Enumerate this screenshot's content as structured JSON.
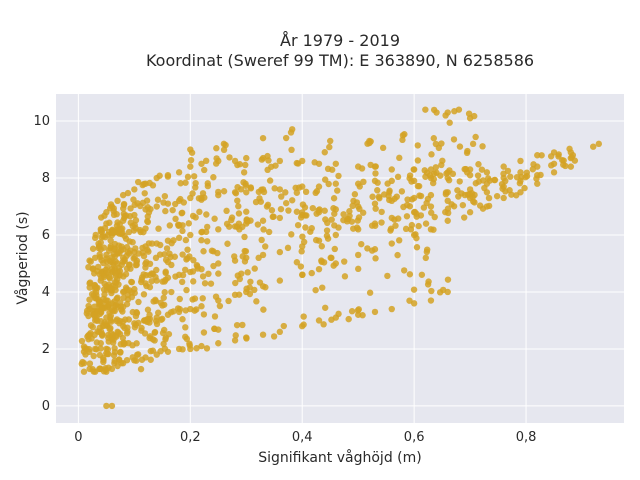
{
  "chart_data": {
    "type": "scatter",
    "title_line1": "År 1979 - 2019",
    "title_line2": "Koordinat (Sweref 99 TM): E 363890, N 6258586",
    "xlabel": "Signifikant våghöjd (m)",
    "ylabel": "Vågperiod (s)",
    "xlim": [
      -0.04,
      0.975
    ],
    "ylim": [
      -0.6,
      10.95
    ],
    "x_ticks": [
      {
        "value": 0,
        "label": "0"
      },
      {
        "value": 0.2,
        "label": "0,2"
      },
      {
        "value": 0.4,
        "label": "0,4"
      },
      {
        "value": 0.6,
        "label": "0,6"
      },
      {
        "value": 0.8,
        "label": "0,8"
      }
    ],
    "y_ticks": [
      {
        "value": 0,
        "label": "0"
      },
      {
        "value": 2,
        "label": "2"
      },
      {
        "value": 4,
        "label": "4"
      },
      {
        "value": 6,
        "label": "6"
      },
      {
        "value": 8,
        "label": "8"
      },
      {
        "value": 10,
        "label": "10"
      }
    ],
    "grid": true,
    "legend": "none",
    "colors": {
      "marker": "#d4a223",
      "plot_background": "#e6e7ef",
      "grid": "#ffffff"
    },
    "series": [
      {
        "points": [
          [
            0.05,
            0.0
          ],
          [
            0.06,
            0.0
          ],
          [
            0.01,
            1.2
          ],
          [
            0.01,
            1.5
          ],
          [
            0.01,
            1.9
          ],
          [
            0.02,
            1.3
          ],
          [
            0.02,
            2.5
          ],
          [
            0.02,
            3.4
          ],
          [
            0.02,
            4.3
          ],
          [
            0.02,
            5.1
          ],
          [
            0.03,
            1.2
          ],
          [
            0.03,
            2.0
          ],
          [
            0.03,
            3.0
          ],
          [
            0.03,
            4.1
          ],
          [
            0.03,
            5.2
          ],
          [
            0.03,
            5.9
          ],
          [
            0.04,
            1.3
          ],
          [
            0.04,
            2.2
          ],
          [
            0.04,
            3.3
          ],
          [
            0.04,
            4.4
          ],
          [
            0.04,
            5.5
          ],
          [
            0.04,
            6.2
          ],
          [
            0.05,
            1.2
          ],
          [
            0.05,
            2.0
          ],
          [
            0.05,
            3.1
          ],
          [
            0.05,
            4.2
          ],
          [
            0.05,
            5.3
          ],
          [
            0.05,
            6.4
          ],
          [
            0.05,
            6.8
          ],
          [
            0.06,
            1.3
          ],
          [
            0.06,
            2.4
          ],
          [
            0.06,
            3.6
          ],
          [
            0.06,
            4.8
          ],
          [
            0.06,
            6.0
          ],
          [
            0.06,
            7.0
          ],
          [
            0.07,
            1.4
          ],
          [
            0.07,
            2.6
          ],
          [
            0.07,
            3.8
          ],
          [
            0.07,
            5.0
          ],
          [
            0.07,
            6.2
          ],
          [
            0.07,
            7.2
          ],
          [
            0.08,
            1.5
          ],
          [
            0.08,
            2.8
          ],
          [
            0.08,
            4.0
          ],
          [
            0.08,
            5.2
          ],
          [
            0.08,
            6.5
          ],
          [
            0.08,
            7.4
          ],
          [
            0.1,
            1.6
          ],
          [
            0.1,
            2.9
          ],
          [
            0.1,
            4.1
          ],
          [
            0.1,
            5.4
          ],
          [
            0.1,
            6.7
          ],
          [
            0.1,
            7.6
          ],
          [
            0.12,
            1.7
          ],
          [
            0.12,
            3.0
          ],
          [
            0.12,
            4.3
          ],
          [
            0.12,
            5.6
          ],
          [
            0.12,
            6.9
          ],
          [
            0.12,
            7.8
          ],
          [
            0.14,
            1.8
          ],
          [
            0.14,
            3.1
          ],
          [
            0.14,
            4.4
          ],
          [
            0.14,
            5.7
          ],
          [
            0.14,
            7.0
          ],
          [
            0.14,
            8.0
          ],
          [
            0.16,
            1.9
          ],
          [
            0.16,
            3.2
          ],
          [
            0.16,
            4.5
          ],
          [
            0.16,
            5.8
          ],
          [
            0.16,
            7.1
          ],
          [
            0.16,
            8.1
          ],
          [
            0.18,
            2.0
          ],
          [
            0.18,
            3.3
          ],
          [
            0.18,
            4.6
          ],
          [
            0.18,
            5.9
          ],
          [
            0.18,
            7.2
          ],
          [
            0.18,
            8.2
          ],
          [
            0.2,
            2.0
          ],
          [
            0.2,
            3.4
          ],
          [
            0.2,
            4.7
          ],
          [
            0.2,
            6.0
          ],
          [
            0.2,
            7.3
          ],
          [
            0.2,
            8.4
          ],
          [
            0.22,
            2.1
          ],
          [
            0.22,
            3.5
          ],
          [
            0.22,
            4.8
          ],
          [
            0.22,
            6.1
          ],
          [
            0.22,
            7.3
          ],
          [
            0.22,
            8.5
          ],
          [
            0.25,
            2.2
          ],
          [
            0.25,
            3.7
          ],
          [
            0.25,
            5.0
          ],
          [
            0.25,
            6.2
          ],
          [
            0.25,
            7.4
          ],
          [
            0.25,
            8.6
          ],
          [
            0.28,
            2.3
          ],
          [
            0.28,
            3.9
          ],
          [
            0.28,
            5.1
          ],
          [
            0.28,
            6.3
          ],
          [
            0.28,
            7.5
          ],
          [
            0.28,
            8.6
          ],
          [
            0.3,
            2.4
          ],
          [
            0.3,
            4.0
          ],
          [
            0.3,
            5.2
          ],
          [
            0.3,
            6.4
          ],
          [
            0.3,
            7.5
          ],
          [
            0.3,
            8.7
          ],
          [
            0.33,
            2.5
          ],
          [
            0.33,
            4.2
          ],
          [
            0.33,
            5.3
          ],
          [
            0.33,
            6.5
          ],
          [
            0.33,
            7.6
          ],
          [
            0.33,
            8.7
          ],
          [
            0.36,
            2.6
          ],
          [
            0.36,
            4.4
          ],
          [
            0.36,
            5.4
          ],
          [
            0.36,
            6.6
          ],
          [
            0.36,
            7.6
          ],
          [
            0.36,
            8.6
          ],
          [
            0.4,
            2.8
          ],
          [
            0.4,
            4.6
          ],
          [
            0.4,
            5.6
          ],
          [
            0.4,
            6.7
          ],
          [
            0.4,
            7.7
          ],
          [
            0.4,
            8.6
          ],
          [
            0.43,
            3.0
          ],
          [
            0.43,
            4.8
          ],
          [
            0.43,
            5.8
          ],
          [
            0.43,
            6.8
          ],
          [
            0.43,
            7.7
          ],
          [
            0.43,
            8.5
          ],
          [
            0.46,
            3.1
          ],
          [
            0.46,
            5.0
          ],
          [
            0.46,
            6.0
          ],
          [
            0.46,
            6.9
          ],
          [
            0.46,
            7.8
          ],
          [
            0.46,
            8.5
          ],
          [
            0.5,
            3.2
          ],
          [
            0.5,
            5.3
          ],
          [
            0.5,
            6.2
          ],
          [
            0.5,
            7.0
          ],
          [
            0.5,
            7.8
          ],
          [
            0.5,
            8.4
          ],
          [
            0.53,
            3.3
          ],
          [
            0.53,
            5.5
          ],
          [
            0.53,
            6.4
          ],
          [
            0.53,
            7.1
          ],
          [
            0.53,
            7.9
          ],
          [
            0.53,
            8.4
          ],
          [
            0.56,
            3.4
          ],
          [
            0.56,
            5.7
          ],
          [
            0.56,
            6.6
          ],
          [
            0.56,
            7.2
          ],
          [
            0.56,
            7.9
          ],
          [
            0.56,
            8.3
          ],
          [
            0.6,
            3.6
          ],
          [
            0.6,
            6.0
          ],
          [
            0.6,
            6.8
          ],
          [
            0.6,
            7.3
          ],
          [
            0.6,
            7.9
          ],
          [
            0.6,
            8.3
          ],
          [
            0.63,
            3.7
          ],
          [
            0.63,
            6.2
          ],
          [
            0.63,
            7.0
          ],
          [
            0.63,
            7.4
          ],
          [
            0.63,
            8.0
          ],
          [
            0.63,
            8.3
          ],
          [
            0.66,
            4.0
          ],
          [
            0.66,
            6.5
          ],
          [
            0.66,
            7.2
          ],
          [
            0.66,
            7.5
          ],
          [
            0.66,
            8.0
          ],
          [
            0.66,
            8.2
          ],
          [
            0.7,
            6.8
          ],
          [
            0.7,
            7.3
          ],
          [
            0.7,
            7.6
          ],
          [
            0.7,
            8.1
          ],
          [
            0.7,
            8.3
          ],
          [
            0.73,
            7.0
          ],
          [
            0.73,
            7.5
          ],
          [
            0.73,
            7.8
          ],
          [
            0.73,
            8.2
          ],
          [
            0.76,
            7.3
          ],
          [
            0.76,
            7.7
          ],
          [
            0.76,
            8.0
          ],
          [
            0.76,
            8.4
          ],
          [
            0.79,
            7.5
          ],
          [
            0.79,
            7.9
          ],
          [
            0.79,
            8.2
          ],
          [
            0.79,
            8.6
          ],
          [
            0.82,
            7.8
          ],
          [
            0.82,
            8.1
          ],
          [
            0.82,
            8.4
          ],
          [
            0.82,
            8.8
          ],
          [
            0.85,
            8.2
          ],
          [
            0.85,
            8.5
          ],
          [
            0.85,
            8.9
          ],
          [
            0.88,
            8.4
          ],
          [
            0.88,
            8.7
          ],
          [
            0.88,
            8.9
          ],
          [
            0.92,
            9.1
          ],
          [
            0.93,
            9.2
          ],
          [
            0.2,
            9.0
          ],
          [
            0.26,
            9.2
          ],
          [
            0.33,
            9.4
          ],
          [
            0.38,
            9.6
          ],
          [
            0.45,
            9.3
          ],
          [
            0.52,
            9.3
          ],
          [
            0.58,
            9.5
          ],
          [
            0.62,
            10.4
          ],
          [
            0.64,
            10.3
          ],
          [
            0.66,
            10.3
          ],
          [
            0.68,
            10.4
          ],
          [
            0.7,
            10.1
          ]
        ]
      }
    ]
  }
}
